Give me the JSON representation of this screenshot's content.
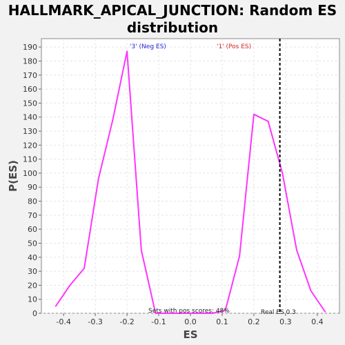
{
  "chart_data": {
    "type": "line",
    "title": "HALLMARK_APICAL_JUNCTION: Random ES distribution",
    "title_lines": [
      "HALLMARK_APICAL_JUNCTION: Random ES",
      "distribution"
    ],
    "xlabel": "ES",
    "ylabel": "P(ES)",
    "xlim": [
      -0.47,
      0.47
    ],
    "ylim": [
      0,
      196
    ],
    "x_ticks": [
      -0.4,
      -0.3,
      -0.2,
      -0.1,
      0.0,
      0.1,
      0.2,
      0.3,
      0.4
    ],
    "x_tick_labels": [
      "-0.4",
      "-0.3",
      "-0.2",
      "-0.1",
      "0.0",
      "0.1",
      "0.2",
      "0.3",
      "0.4"
    ],
    "y_ticks": [
      0,
      10,
      20,
      30,
      40,
      50,
      60,
      70,
      80,
      90,
      100,
      110,
      120,
      130,
      140,
      150,
      160,
      170,
      180,
      190
    ],
    "grid": true,
    "series": [
      {
        "color": "#ff33ff",
        "x": [
          -0.425,
          -0.38,
          -0.335,
          -0.29,
          -0.245,
          -0.2,
          -0.155,
          -0.11,
          -0.065,
          -0.02,
          0.025,
          0.07,
          0.11,
          0.155,
          0.2,
          0.245,
          0.29,
          0.335,
          0.38,
          0.425
        ],
        "y": [
          5,
          20,
          32,
          96,
          138,
          187,
          45,
          0,
          0,
          0,
          0,
          0,
          2,
          41,
          142,
          137,
          100,
          45,
          16,
          1
        ]
      }
    ],
    "real_es": 0.282,
    "annotations": {
      "neg_label": "'3' (Neg ES)",
      "pos_label": "'1' (Pos ES)",
      "pos_scores": "Sets with pos scores: 48%",
      "real_es_label": "Real ES 0.3"
    },
    "colors": {
      "neg_label": "#2222dd",
      "pos_label": "#dd2222",
      "plot_background": "#ffffff",
      "page_background": "#f2f2f2"
    }
  }
}
